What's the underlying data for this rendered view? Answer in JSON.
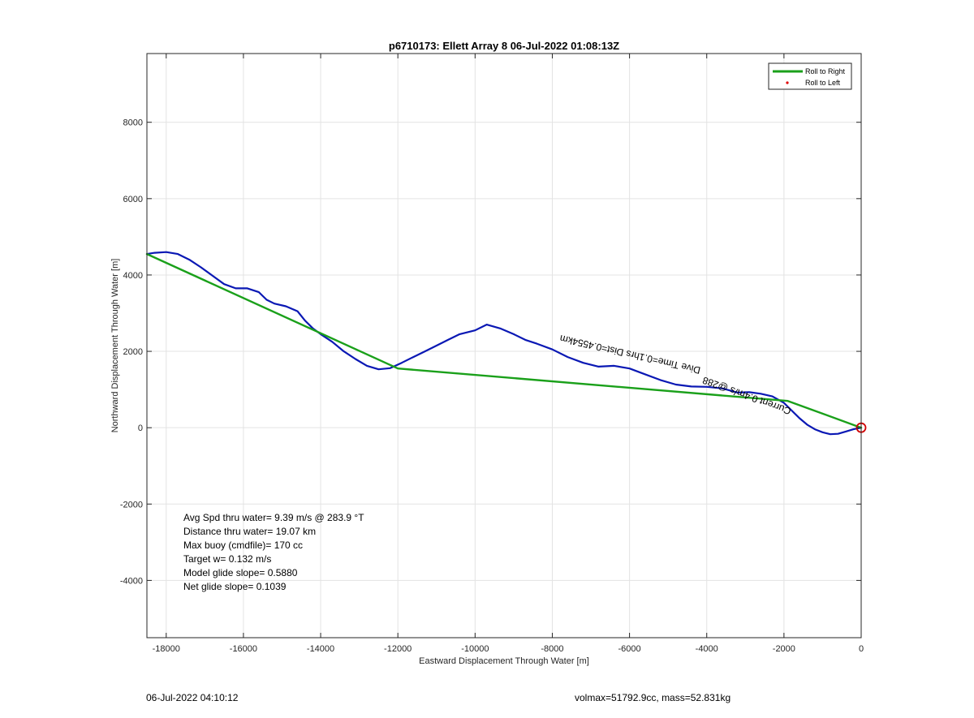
{
  "chart_data": {
    "type": "line",
    "title": "p6710173: Ellett Array 8 06-Jul-2022 01:08:13Z",
    "xlabel": "Eastward Displacement Through Water [m]",
    "ylabel": "Northward Displacement Through Water [m]",
    "xlim": [
      -18500,
      0
    ],
    "ylim": [
      -5500,
      9800
    ],
    "xticks": [
      -18000,
      -16000,
      -14000,
      -12000,
      -10000,
      -8000,
      -6000,
      -4000,
      -2000,
      0
    ],
    "yticks": [
      -4000,
      -2000,
      0,
      2000,
      4000,
      6000,
      8000
    ],
    "grid": true,
    "legend_position": "top-right",
    "legend": [
      {
        "label": "Roll to Right",
        "color": "#1aa01a",
        "style": "line"
      },
      {
        "label": "Roll to Left",
        "color": "#e00000",
        "style": "dot"
      }
    ],
    "series": [
      {
        "color": "#0a18b4",
        "x": [
          -18500,
          -18300,
          -18000,
          -17700,
          -17400,
          -17100,
          -16800,
          -16500,
          -16200,
          -15900,
          -15600,
          -15400,
          -15200,
          -14900,
          -14600,
          -14400,
          -14200,
          -14000,
          -13700,
          -13400,
          -13100,
          -12800,
          -12500,
          -12200,
          -11900,
          -11600,
          -11300,
          -11000,
          -10700,
          -10400,
          -10000,
          -9700,
          -9350,
          -9000,
          -8700,
          -8400,
          -8000,
          -7600,
          -7200,
          -6800,
          -6400,
          -6000,
          -5600,
          -5200,
          -4800,
          -4400,
          -4000,
          -3600,
          -3200,
          -2900,
          -2600,
          -2300,
          -2000,
          -1800,
          -1600,
          -1400,
          -1200,
          -1000,
          -800,
          -600,
          -400,
          -200,
          0
        ],
        "y": [
          4550,
          4580,
          4600,
          4550,
          4400,
          4200,
          3980,
          3760,
          3650,
          3650,
          3550,
          3350,
          3250,
          3180,
          3050,
          2800,
          2600,
          2450,
          2250,
          2000,
          1800,
          1620,
          1530,
          1560,
          1700,
          1850,
          2000,
          2150,
          2300,
          2450,
          2550,
          2700,
          2600,
          2450,
          2300,
          2200,
          2050,
          1850,
          1700,
          1600,
          1620,
          1550,
          1400,
          1250,
          1130,
          1080,
          1070,
          1030,
          920,
          930,
          890,
          820,
          650,
          450,
          250,
          80,
          -40,
          -120,
          -170,
          -160,
          -100,
          -40,
          0
        ]
      },
      {
        "name": "Roll to Right",
        "color": "#1aa01a",
        "x": [
          -18500,
          -12000,
          -1900,
          0
        ],
        "y": [
          4550,
          1550,
          700,
          0
        ]
      }
    ],
    "annotations": [
      {
        "text": "Dive Time=0.1hrs Dist=0.4554km",
        "x": -4150,
        "y": 1580,
        "rotation_deg": 193
      },
      {
        "text": "Current 0.4m/s @288",
        "x": -1800,
        "y": 500,
        "rotation_deg": 200
      }
    ],
    "marker": {
      "x": 0,
      "y": 0,
      "color": "#d00000"
    },
    "stats": [
      "Avg Spd thru water=  9.39 m/s @ 283.9 °T",
      "Distance thru water= 19.07 km",
      "Max buoy (cmdfile)= 170 cc",
      "Target w= 0.132 m/s",
      "Model glide slope= 0.5880",
      "Net glide slope= 0.1039"
    ]
  },
  "footer": {
    "left": "06-Jul-2022 04:10:12",
    "right": "volmax=51792.9cc, mass=52.831kg"
  }
}
